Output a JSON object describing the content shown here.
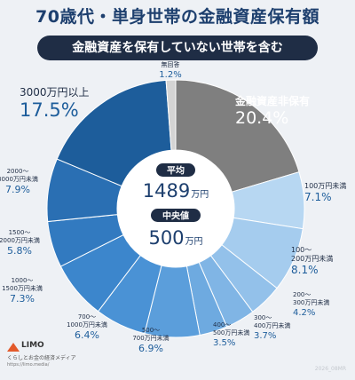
{
  "title": "70歳代・単身世帯の金融資産保有額",
  "subtitle": "金融資産を保有していない世帯を含む",
  "center": {
    "avg_label": "平均",
    "avg_value": "1489",
    "avg_unit": "万円",
    "median_label": "中央値",
    "median_value": "500",
    "median_unit": "万円"
  },
  "brand": {
    "logo": "LIMO",
    "tagline": "くらしとお金の経済メディア",
    "url": "https://limo.media/"
  },
  "note": "2026_08MR",
  "colors": {
    "dark_navy": "#1f2d45",
    "title_blue": "#1d3f6e",
    "gray": "#7f7f7f"
  },
  "chart_data": {
    "type": "pie",
    "donut": true,
    "unit": "%",
    "slices": [
      {
        "label": "金融資産非保有",
        "value": 20.4,
        "color": "#7f7f7f"
      },
      {
        "label": "100万円未満",
        "value": 7.1,
        "color": "#b7d7f2"
      },
      {
        "label": "100〜200万円未満",
        "value": 8.1,
        "color": "#a5ccee"
      },
      {
        "label": "200〜300万円未満",
        "value": 4.2,
        "color": "#93c1ea"
      },
      {
        "label": "300〜400万円未満",
        "value": 3.7,
        "color": "#80b5e5"
      },
      {
        "label": "400〜500万円未満",
        "value": 3.5,
        "color": "#6eaae0"
      },
      {
        "label": "500〜700万円未満",
        "value": 6.9,
        "color": "#5b9edb"
      },
      {
        "label": "700〜1000万円未満",
        "value": 6.4,
        "color": "#4a92d5"
      },
      {
        "label": "1000〜1500万円未満",
        "value": 7.3,
        "color": "#3c86cc"
      },
      {
        "label": "1500〜2000万円未満",
        "value": 5.8,
        "color": "#327ac0"
      },
      {
        "label": "2000〜3000万円未満",
        "value": 7.9,
        "color": "#2a6fb3"
      },
      {
        "label": "3000万円以上",
        "value": 17.5,
        "color": "#1d5d9b"
      },
      {
        "label": "無回答",
        "value": 1.2,
        "color": "#d4d4d4"
      }
    ]
  }
}
